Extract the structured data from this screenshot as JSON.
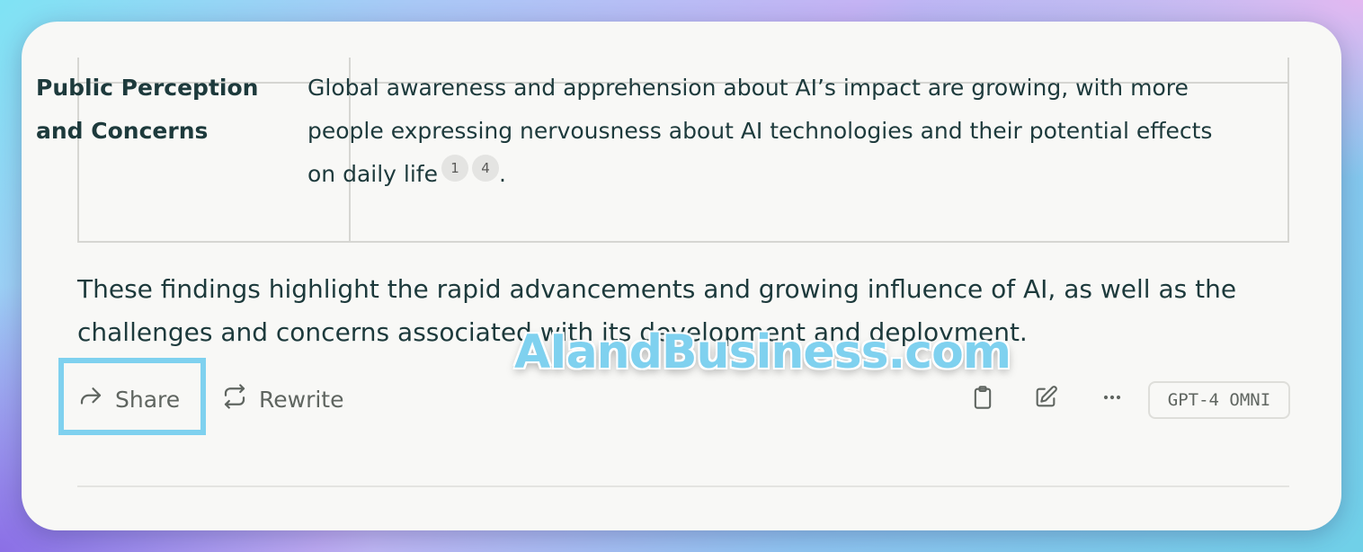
{
  "table": {
    "row": {
      "header": "Public Perception and Concerns",
      "body": "Global awareness and apprehension about AI’s impact are growing, with more people expressing nervousness about AI technologies and their potential effects on daily life",
      "citations": [
        "1",
        "4"
      ],
      "end": "."
    }
  },
  "summary": "These findings highlight the rapid advancements and growing influence of AI, as well as the challenges and concerns associated with its development and deployment.",
  "watermark": "AIandBusiness.com",
  "actions": {
    "share_label": "Share",
    "rewrite_label": "Rewrite"
  },
  "toolbar_icons": [
    "share-icon",
    "rewrite-icon",
    "clipboard-icon",
    "pencil-icon",
    "more-icon"
  ],
  "model_badge": "GPT-4 OMNI",
  "colors": {
    "text": "#1d3a3c",
    "muted": "#5f6560",
    "highlight": "#7fd1ef",
    "card": "#f8f8f6"
  }
}
